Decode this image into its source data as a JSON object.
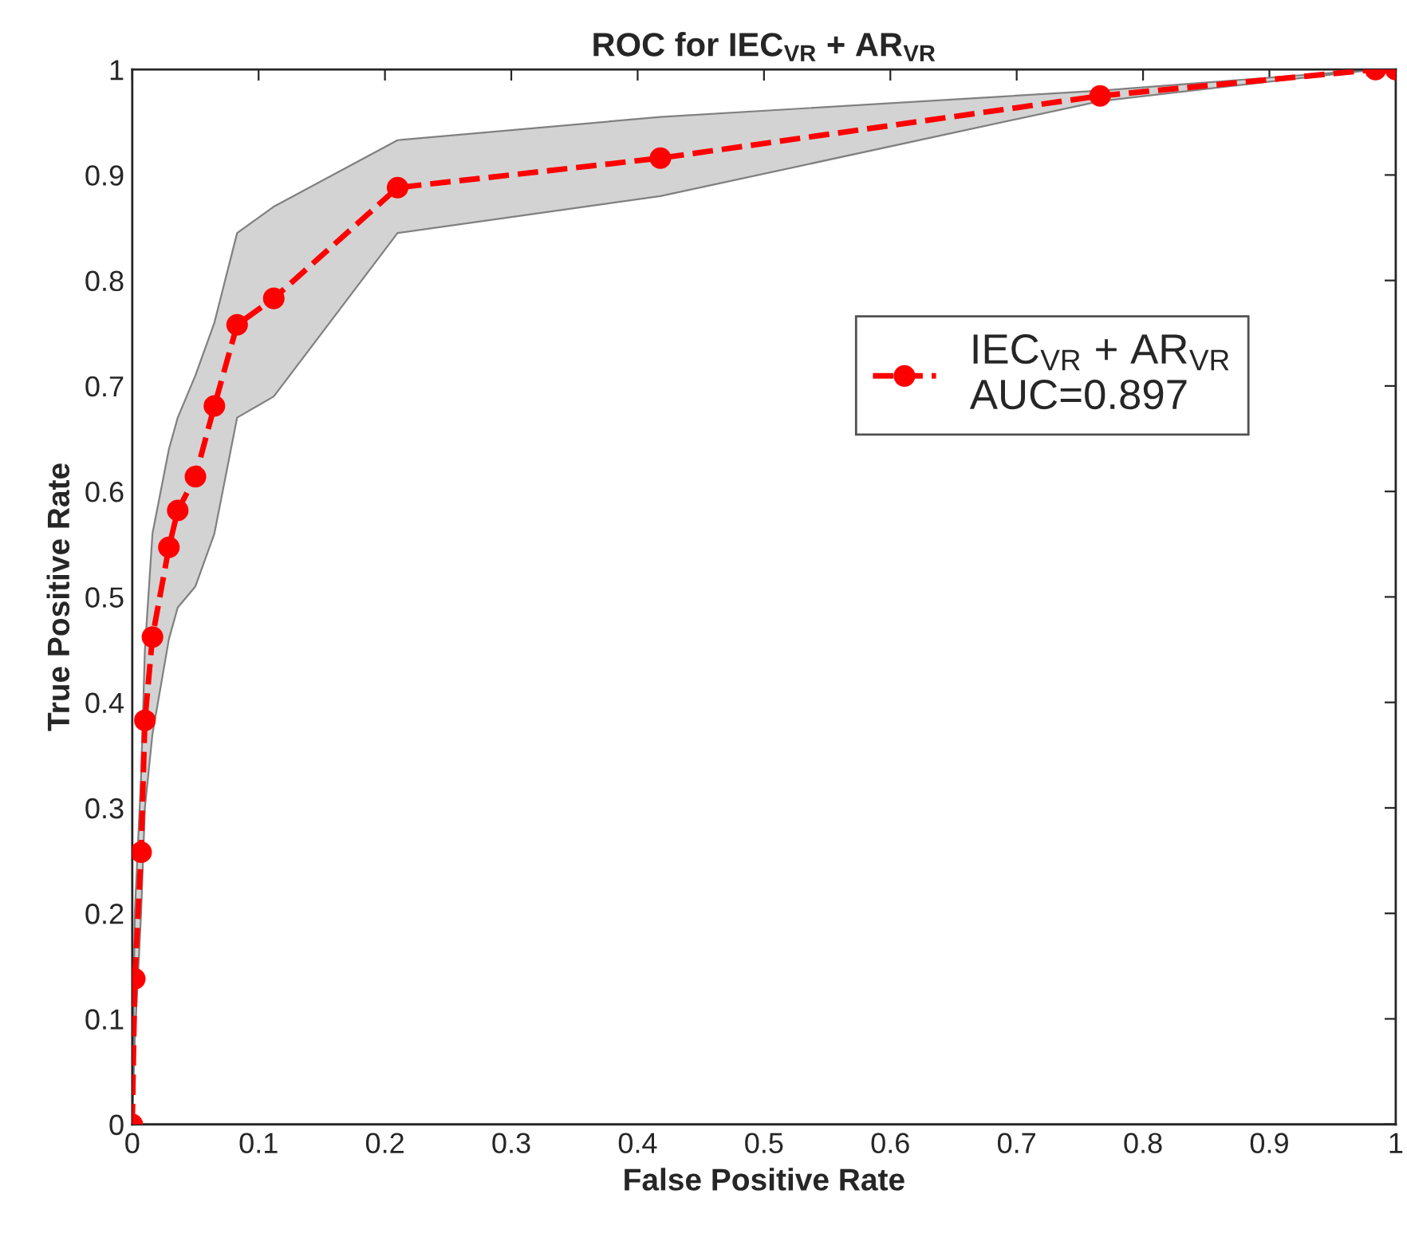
{
  "chart_data": {
    "type": "line",
    "title": "ROC for IEC$_{VR}$ + AR$_{VR}$",
    "xlabel": "False Positive Rate",
    "ylabel": "True Positive Rate",
    "x": [
      0,
      0.002,
      0.007,
      0.01,
      0.016,
      0.029,
      0.036,
      0.05,
      0.065,
      0.083,
      0.112,
      0.21,
      0.418,
      0.766,
      0.984,
      1.0
    ],
    "series": [
      {
        "name": "IEC$_{VR}$ + AR$_{VR}$\nAUC=0.897",
        "color": "#ff0000",
        "values": [
          0,
          0.138,
          0.258,
          0.383,
          0.462,
          0.547,
          0.582,
          0.614,
          0.681,
          0.758,
          0.783,
          0.888,
          0.916,
          0.975,
          1.0,
          1.0
        ],
        "lower": [
          0,
          0.08,
          0.2,
          0.3,
          0.37,
          0.46,
          0.49,
          0.51,
          0.56,
          0.67,
          0.69,
          0.845,
          0.88,
          0.97,
          1.0,
          1.0
        ],
        "upper": [
          0,
          0.2,
          0.33,
          0.45,
          0.56,
          0.64,
          0.67,
          0.71,
          0.76,
          0.845,
          0.87,
          0.933,
          0.955,
          0.98,
          1.0,
          1.0
        ]
      }
    ],
    "xlim": [
      0,
      1
    ],
    "ylim": [
      0,
      1
    ],
    "xticks": [
      0,
      0.1,
      0.2,
      0.3,
      0.4,
      0.5,
      0.6,
      0.7,
      0.8,
      0.9,
      1
    ],
    "yticks": [
      0,
      0.1,
      0.2,
      0.3,
      0.4,
      0.5,
      0.6,
      0.7,
      0.8,
      0.9,
      1
    ],
    "marker": "circle",
    "line_style": "dashed",
    "legend": "right",
    "grid": false
  }
}
